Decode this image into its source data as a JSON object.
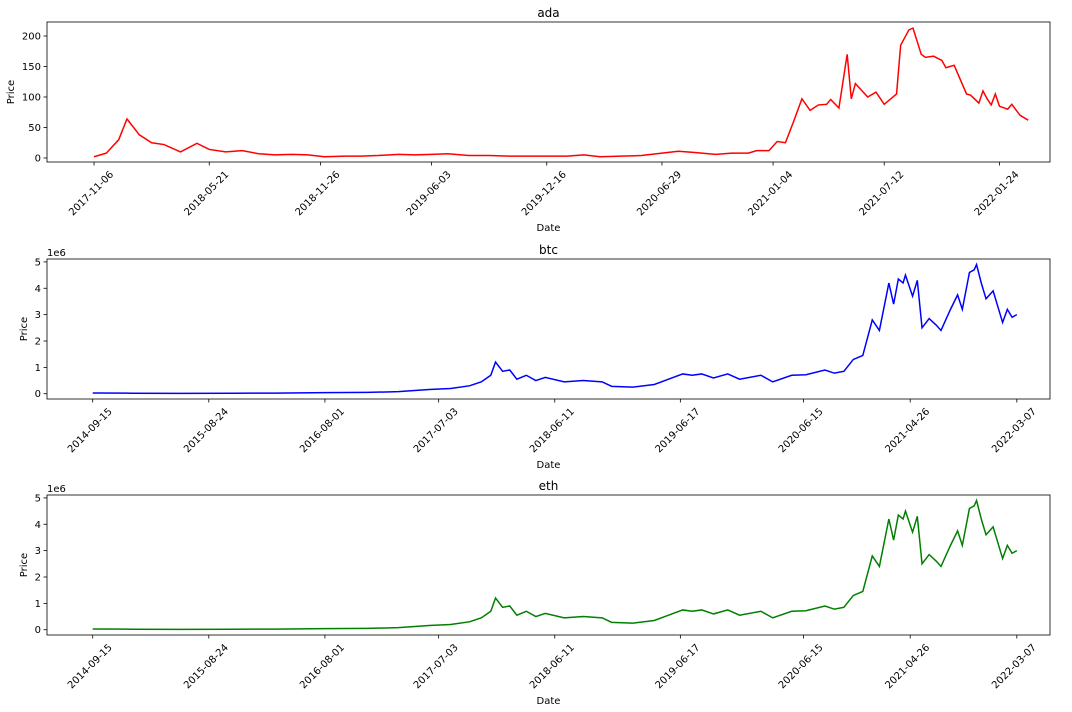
{
  "chart_data": [
    {
      "type": "line",
      "title": "ada",
      "x_label": "Date",
      "y_label": "Price",
      "color": "#ff0000",
      "x": [
        "2017-11-06",
        "2017-11-27",
        "2017-12-18",
        "2018-01-01",
        "2018-01-22",
        "2018-02-12",
        "2018-03-05",
        "2018-04-02",
        "2018-04-30",
        "2018-05-21",
        "2018-06-18",
        "2018-07-16",
        "2018-08-13",
        "2018-09-10",
        "2018-10-08",
        "2018-11-05",
        "2018-12-03",
        "2019-01-07",
        "2019-02-04",
        "2019-03-04",
        "2019-04-08",
        "2019-05-06",
        "2019-06-03",
        "2019-07-01",
        "2019-08-05",
        "2019-09-09",
        "2019-10-14",
        "2019-11-11",
        "2019-12-16",
        "2020-01-20",
        "2020-02-17",
        "2020-03-16",
        "2020-04-20",
        "2020-05-25",
        "2020-06-29",
        "2020-07-27",
        "2020-08-24",
        "2020-09-28",
        "2020-10-26",
        "2020-11-23",
        "2020-12-07",
        "2020-12-28",
        "2021-01-11",
        "2021-01-25",
        "2021-02-08",
        "2021-02-22",
        "2021-03-08",
        "2021-03-22",
        "2021-04-05",
        "2021-04-12",
        "2021-04-26",
        "2021-05-10",
        "2021-05-17",
        "2021-05-24",
        "2021-06-14",
        "2021-06-28",
        "2021-07-12",
        "2021-08-02",
        "2021-08-09",
        "2021-08-23",
        "2021-08-30",
        "2021-09-13",
        "2021-09-20",
        "2021-10-04",
        "2021-10-18",
        "2021-10-25",
        "2021-11-08",
        "2021-11-29",
        "2021-12-06",
        "2021-12-20",
        "2021-12-27",
        "2022-01-03",
        "2022-01-10",
        "2022-01-17",
        "2022-01-24",
        "2022-02-07",
        "2022-02-14",
        "2022-02-28",
        "2022-03-14"
      ],
      "values": [
        2,
        8,
        30,
        64,
        38,
        25,
        22,
        10,
        24,
        14,
        10,
        12,
        7,
        5,
        6,
        5,
        2,
        3,
        3,
        4,
        6,
        5,
        6,
        7,
        4,
        4,
        3,
        3,
        3,
        3,
        5,
        2,
        3,
        4,
        8,
        11,
        9,
        6,
        8,
        8,
        12,
        12,
        27,
        25,
        60,
        97,
        78,
        87,
        88,
        96,
        82,
        170,
        97,
        122,
        100,
        108,
        88,
        105,
        185,
        210,
        213,
        170,
        165,
        167,
        160,
        148,
        152,
        105,
        103,
        90,
        110,
        97,
        87,
        105,
        85,
        80,
        88,
        70,
        62
      ],
      "xlim": [
        "2017-08-18",
        "2022-04-20"
      ],
      "xticks": [
        "2017-11-06",
        "2018-05-21",
        "2018-11-26",
        "2019-06-03",
        "2019-12-16",
        "2020-06-29",
        "2021-01-04",
        "2021-07-12",
        "2022-01-24"
      ],
      "ylim": [
        -6.6,
        223
      ],
      "yticks": [
        0,
        50,
        100,
        150,
        200
      ]
    },
    {
      "type": "line",
      "title": "btc",
      "x_label": "Date",
      "y_label": "Price",
      "y_offset_label": "1e6",
      "color": "#0000ff",
      "x": [
        "2014-09-15",
        "2015-01-05",
        "2015-06-01",
        "2015-11-02",
        "2016-03-07",
        "2016-08-01",
        "2016-12-05",
        "2017-03-06",
        "2017-06-05",
        "2017-08-07",
        "2017-10-02",
        "2017-11-06",
        "2017-12-04",
        "2017-12-18",
        "2018-01-08",
        "2018-01-29",
        "2018-02-19",
        "2018-03-19",
        "2018-04-16",
        "2018-05-14",
        "2018-07-09",
        "2018-09-03",
        "2018-10-29",
        "2018-11-26",
        "2019-01-28",
        "2019-04-01",
        "2019-05-13",
        "2019-06-24",
        "2019-07-22",
        "2019-08-19",
        "2019-09-23",
        "2019-11-04",
        "2019-12-09",
        "2020-02-10",
        "2020-03-16",
        "2020-05-11",
        "2020-06-22",
        "2020-08-17",
        "2020-09-14",
        "2020-10-12",
        "2020-11-09",
        "2020-12-07",
        "2021-01-04",
        "2021-01-25",
        "2021-02-22",
        "2021-03-08",
        "2021-03-22",
        "2021-04-05",
        "2021-04-12",
        "2021-05-03",
        "2021-05-17",
        "2021-05-31",
        "2021-06-21",
        "2021-07-12",
        "2021-07-26",
        "2021-08-23",
        "2021-09-13",
        "2021-09-27",
        "2021-10-18",
        "2021-11-01",
        "2021-11-08",
        "2021-11-22",
        "2021-12-06",
        "2021-12-27",
        "2022-01-10",
        "2022-01-24",
        "2022-02-07",
        "2022-02-21",
        "2022-03-07"
      ],
      "values": [
        0.03,
        0.02,
        0.015,
        0.02,
        0.025,
        0.04,
        0.05,
        0.08,
        0.16,
        0.2,
        0.3,
        0.45,
        0.7,
        1.2,
        0.85,
        0.9,
        0.55,
        0.7,
        0.5,
        0.62,
        0.45,
        0.5,
        0.45,
        0.28,
        0.25,
        0.35,
        0.55,
        0.75,
        0.7,
        0.75,
        0.6,
        0.75,
        0.55,
        0.7,
        0.45,
        0.7,
        0.72,
        0.9,
        0.78,
        0.85,
        1.3,
        1.45,
        2.8,
        2.4,
        4.2,
        3.4,
        4.35,
        4.2,
        4.5,
        3.7,
        4.3,
        2.5,
        2.85,
        2.6,
        2.4,
        3.2,
        3.75,
        3.2,
        4.6,
        4.7,
        4.9,
        4.2,
        3.6,
        3.9,
        3.3,
        2.7,
        3.2,
        2.9,
        3.0
      ],
      "xlim": [
        "2014-05-03",
        "2022-06-13"
      ],
      "xticks": [
        "2014-09-15",
        "2015-08-24",
        "2016-08-01",
        "2017-07-03",
        "2018-06-11",
        "2019-06-17",
        "2020-06-15",
        "2021-04-26",
        "2022-03-07"
      ],
      "ylim": [
        -0.2,
        5.11
      ],
      "yticks": [
        0,
        1,
        2,
        3,
        4,
        5
      ]
    },
    {
      "type": "line",
      "title": "eth",
      "x_label": "Date",
      "y_label": "Price",
      "y_offset_label": "1e6",
      "color": "#008000",
      "x": [
        "2014-09-15",
        "2015-01-05",
        "2015-06-01",
        "2015-11-02",
        "2016-03-07",
        "2016-08-01",
        "2016-12-05",
        "2017-03-06",
        "2017-06-05",
        "2017-08-07",
        "2017-10-02",
        "2017-11-06",
        "2017-12-04",
        "2017-12-18",
        "2018-01-08",
        "2018-01-29",
        "2018-02-19",
        "2018-03-19",
        "2018-04-16",
        "2018-05-14",
        "2018-07-09",
        "2018-09-03",
        "2018-10-29",
        "2018-11-26",
        "2019-01-28",
        "2019-04-01",
        "2019-05-13",
        "2019-06-24",
        "2019-07-22",
        "2019-08-19",
        "2019-09-23",
        "2019-11-04",
        "2019-12-09",
        "2020-02-10",
        "2020-03-16",
        "2020-05-11",
        "2020-06-22",
        "2020-08-17",
        "2020-09-14",
        "2020-10-12",
        "2020-11-09",
        "2020-12-07",
        "2021-01-04",
        "2021-01-25",
        "2021-02-22",
        "2021-03-08",
        "2021-03-22",
        "2021-04-05",
        "2021-04-12",
        "2021-05-03",
        "2021-05-17",
        "2021-05-31",
        "2021-06-21",
        "2021-07-12",
        "2021-07-26",
        "2021-08-23",
        "2021-09-13",
        "2021-09-27",
        "2021-10-18",
        "2021-11-01",
        "2021-11-08",
        "2021-11-22",
        "2021-12-06",
        "2021-12-27",
        "2022-01-10",
        "2022-01-24",
        "2022-02-07",
        "2022-02-21",
        "2022-03-07"
      ],
      "values": [
        0.03,
        0.02,
        0.015,
        0.02,
        0.025,
        0.04,
        0.05,
        0.08,
        0.16,
        0.2,
        0.3,
        0.45,
        0.7,
        1.2,
        0.85,
        0.9,
        0.55,
        0.7,
        0.5,
        0.62,
        0.45,
        0.5,
        0.45,
        0.28,
        0.25,
        0.35,
        0.55,
        0.75,
        0.7,
        0.75,
        0.6,
        0.75,
        0.55,
        0.7,
        0.45,
        0.7,
        0.72,
        0.9,
        0.78,
        0.85,
        1.3,
        1.45,
        2.8,
        2.4,
        4.2,
        3.4,
        4.35,
        4.2,
        4.5,
        3.7,
        4.3,
        2.5,
        2.85,
        2.6,
        2.4,
        3.2,
        3.75,
        3.2,
        4.6,
        4.7,
        4.9,
        4.2,
        3.6,
        3.9,
        3.3,
        2.7,
        3.2,
        2.9,
        3.0
      ],
      "xlim": [
        "2014-05-03",
        "2022-06-13"
      ],
      "xticks": [
        "2014-09-15",
        "2015-08-24",
        "2016-08-01",
        "2017-07-03",
        "2018-06-11",
        "2019-06-17",
        "2020-06-15",
        "2021-04-26",
        "2022-03-07"
      ],
      "ylim": [
        -0.2,
        5.11
      ],
      "yticks": [
        0,
        1,
        2,
        3,
        4,
        5
      ]
    }
  ]
}
